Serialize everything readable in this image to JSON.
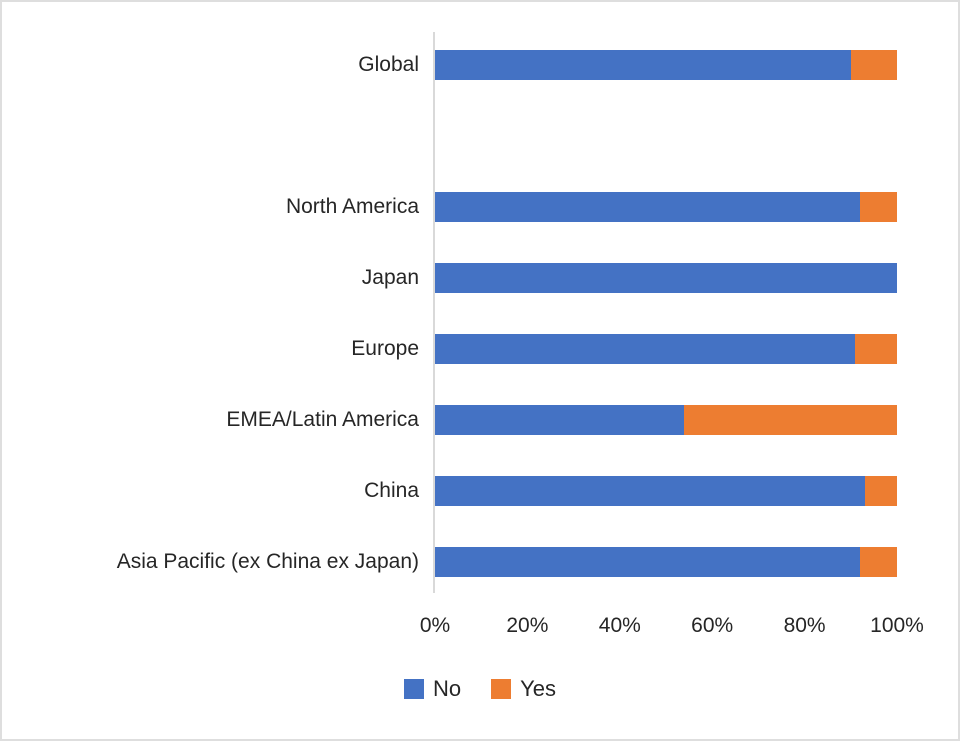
{
  "chart_data": {
    "type": "bar",
    "orientation": "horizontal",
    "stacked": true,
    "title": "",
    "xlabel": "",
    "ylabel": "",
    "categories": [
      "Global",
      "",
      "North America",
      "Japan",
      "Europe",
      "EMEA/Latin America",
      "China",
      "Asia Pacific (ex China ex Japan)"
    ],
    "series": [
      {
        "name": "No",
        "color": "#4472C4",
        "values": [
          90,
          null,
          92,
          100,
          91,
          54,
          93,
          92
        ]
      },
      {
        "name": "Yes",
        "color": "#ED7D31",
        "values": [
          10,
          null,
          8,
          0,
          9,
          46,
          7,
          8
        ]
      }
    ],
    "x_axis": {
      "min": 0,
      "max": 100,
      "unit": "%",
      "tick_labels": [
        "0%",
        "20%",
        "40%",
        "60%",
        "80%",
        "100%"
      ],
      "gridlines": false
    },
    "legend": {
      "position": "bottom",
      "entries": [
        {
          "label": "No",
          "color": "#4472C4"
        },
        {
          "label": "Yes",
          "color": "#ED7D31"
        }
      ]
    }
  },
  "colors": {
    "no_series": "#4472C4",
    "yes_series": "#ED7D31",
    "axis_line": "#d9d9d9",
    "text": "#262626",
    "background": "#ffffff",
    "frame_border": "#dedede"
  }
}
